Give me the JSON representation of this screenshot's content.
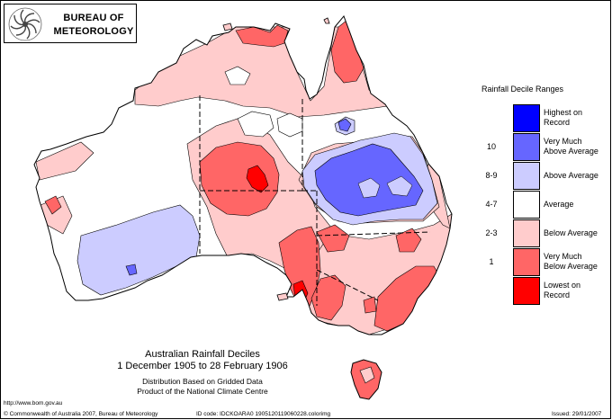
{
  "header": {
    "logo_line_1": "BUREAU OF",
    "logo_line_2": "METEOROLOGY"
  },
  "map": {
    "title_line_1": "Australian Rainfall Deciles",
    "title_line_2": "1 December 1905 to 28 February 1906",
    "subtitle_line_1": "Distribution Based on Gridded Data",
    "subtitle_line_2": "Product of the National Climate Centre"
  },
  "legend": {
    "title": "Rainfall Decile Ranges",
    "items": [
      {
        "range": "",
        "label_line_1": "Highest on",
        "label_line_2": "Record",
        "color": "#0000ff"
      },
      {
        "range": "10",
        "label_line_1": "Very Much",
        "label_line_2": "Above Average",
        "color": "#6666ff"
      },
      {
        "range": "8-9",
        "label_line_1": "Above Average",
        "label_line_2": "",
        "color": "#ccccff"
      },
      {
        "range": "4-7",
        "label_line_1": "Average",
        "label_line_2": "",
        "color": "#ffffff"
      },
      {
        "range": "2-3",
        "label_line_1": "Below Average",
        "label_line_2": "",
        "color": "#ffcccc"
      },
      {
        "range": "1",
        "label_line_1": "Very Much",
        "label_line_2": "Below Average",
        "color": "#ff6666"
      },
      {
        "range": "",
        "label_line_1": "Lowest on",
        "label_line_2": "Record",
        "color": "#ff0000"
      }
    ]
  },
  "footer": {
    "web_link": "http://www.bom.gov.au",
    "copyright": "© Commonwealth of Australia 2007, Bureau of Meteorology",
    "id_code": "ID code: IDCKOARA0 1905120119060228.colorimg",
    "issued": "Issued: 29/01/2007"
  }
}
